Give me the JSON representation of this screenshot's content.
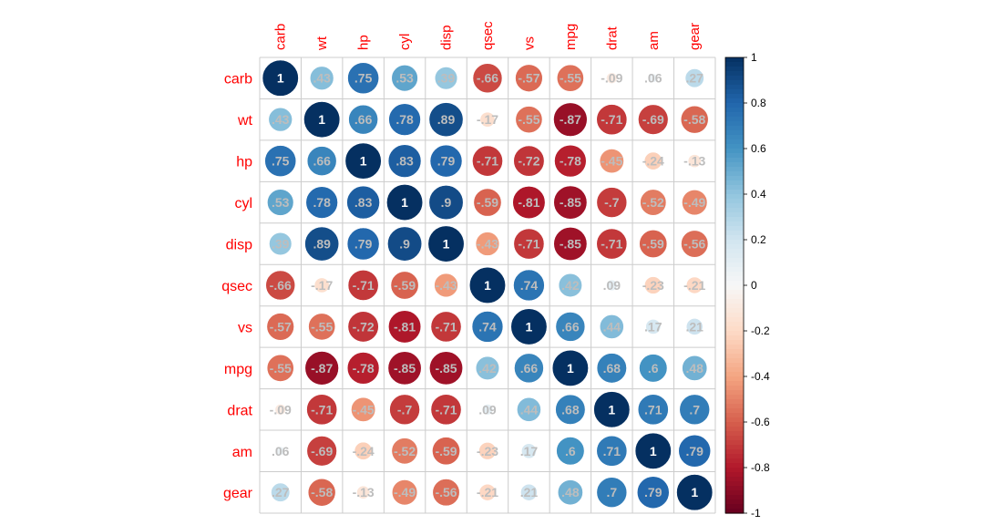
{
  "chart_data": {
    "type": "heatmap",
    "title": "",
    "variables": [
      "carb",
      "wt",
      "hp",
      "cyl",
      "disp",
      "qsec",
      "vs",
      "mpg",
      "drat",
      "am",
      "gear"
    ],
    "matrix": [
      [
        1,
        0.43,
        0.75,
        0.53,
        0.39,
        -0.66,
        -0.57,
        -0.55,
        -0.09,
        0.06,
        0.27
      ],
      [
        0.43,
        1,
        0.66,
        0.78,
        0.89,
        -0.17,
        -0.55,
        -0.87,
        -0.71,
        -0.69,
        -0.58
      ],
      [
        0.75,
        0.66,
        1,
        0.83,
        0.79,
        -0.71,
        -0.72,
        -0.78,
        -0.45,
        -0.24,
        -0.13
      ],
      [
        0.53,
        0.78,
        0.83,
        1,
        0.9,
        -0.59,
        -0.81,
        -0.85,
        -0.7,
        -0.52,
        -0.49
      ],
      [
        0.39,
        0.89,
        0.79,
        0.9,
        1,
        -0.43,
        -0.71,
        -0.85,
        -0.71,
        -0.59,
        -0.56
      ],
      [
        -0.66,
        -0.17,
        -0.71,
        -0.59,
        -0.43,
        1,
        0.74,
        0.42,
        0.09,
        -0.23,
        -0.21
      ],
      [
        -0.57,
        -0.55,
        -0.72,
        -0.81,
        -0.71,
        0.74,
        1,
        0.66,
        0.44,
        0.17,
        0.21
      ],
      [
        -0.55,
        -0.87,
        -0.78,
        -0.85,
        -0.85,
        0.42,
        0.66,
        1,
        0.68,
        0.6,
        0.48
      ],
      [
        -0.09,
        -0.71,
        -0.45,
        -0.7,
        -0.71,
        0.09,
        0.44,
        0.68,
        1,
        0.71,
        0.7
      ],
      [
        0.06,
        -0.69,
        -0.24,
        -0.52,
        -0.59,
        -0.23,
        0.17,
        0.6,
        0.71,
        1,
        0.79
      ],
      [
        0.27,
        -0.58,
        -0.13,
        -0.49,
        -0.56,
        -0.21,
        0.21,
        0.48,
        0.7,
        0.79,
        1
      ]
    ],
    "color_scale": {
      "range": [
        -1,
        1
      ],
      "ticks": [
        "1",
        "0.8",
        "0.6",
        "0.4",
        "0.2",
        "0",
        "-0.2",
        "-0.4",
        "-0.6",
        "-0.8",
        "-1"
      ],
      "low_color": "#67001f",
      "mid_color": "#f7f7f7",
      "high_color": "#053061"
    },
    "label_color": "#ff0000",
    "value_label_color": "#bdbdbd",
    "diagonal_label_color": "#ffffff",
    "grid": true,
    "legend_placement": "right"
  }
}
